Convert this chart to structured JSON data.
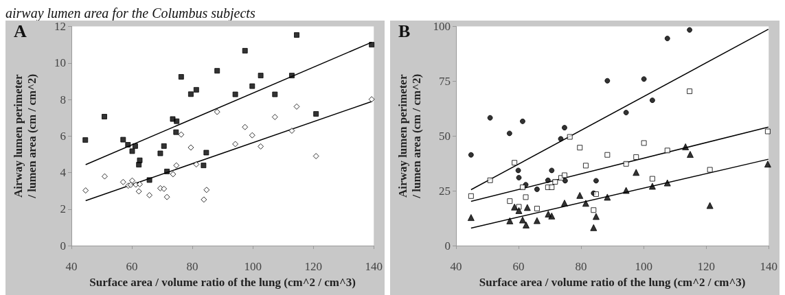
{
  "chart_data": [
    {
      "type": "scatter",
      "title": "airway lumen area for the Columbus subjects",
      "annotations": [
        "A"
      ],
      "xlabel": "Surface area / volume ratio of the lung (cm^2 / cm^3)",
      "ylabel": "Airway lumen perimeter / lumen area (cm / cm^2)",
      "xlim": [
        40,
        140
      ],
      "xticks": [
        40,
        60,
        80,
        100,
        120,
        140
      ],
      "ylim": [
        0,
        12
      ],
      "yticks": [
        0,
        2,
        4,
        6,
        8,
        10,
        12
      ],
      "grid": false,
      "series": [
        {
          "marker": "square",
          "color": "#000000",
          "x": [
            44.6,
            50.9,
            57.1,
            58.7,
            60.1,
            61.1,
            62.3,
            62.6,
            65.8,
            69.4,
            70.6,
            71.6,
            73.5,
            74.8,
            74.6,
            76.3,
            79.5,
            81.3,
            88.2,
            97.4,
            94.2,
            102.6,
            99.8,
            112.9,
            114.5,
            107.3,
            120.9,
            139.3,
            84.6,
            83.7
          ],
          "values": [
            5.78,
            7.06,
            5.8,
            5.52,
            5.17,
            5.45,
            4.43,
            4.67,
            3.59,
            5.05,
            5.45,
            4.06,
            6.93,
            6.81,
            6.21,
            9.24,
            8.29,
            8.53,
            9.57,
            10.67,
            8.28,
            9.31,
            8.73,
            9.31,
            11.53,
            8.28,
            7.21,
            11.0,
            5.09,
            4.39
          ]
        },
        {
          "marker": "diamond",
          "color": "#ffffff",
          "x": [
            44.7,
            51.0,
            57.1,
            58.8,
            60.1,
            59.6,
            61.3,
            62.6,
            62.3,
            65.8,
            69.4,
            70.6,
            71.6,
            73.6,
            74.7,
            76.3,
            79.5,
            81.3,
            88.2,
            94.2,
            97.4,
            99.8,
            102.6,
            107.3,
            112.9,
            114.5,
            120.9,
            139.3,
            84.7,
            83.8
          ],
          "values": [
            3.02,
            3.79,
            3.48,
            3.28,
            3.56,
            3.32,
            3.34,
            3.36,
            2.97,
            2.76,
            3.14,
            3.11,
            2.66,
            3.91,
            4.39,
            6.08,
            5.37,
            4.45,
            7.32,
            5.56,
            6.49,
            6.04,
            5.43,
            7.04,
            6.29,
            7.61,
            4.9,
            8.01,
            3.05,
            2.52
          ]
        },
        {
          "type": "line",
          "marker": "none",
          "color": "#000000",
          "x": [
            44.7,
            139.3
          ],
          "values": [
            4.43,
            11.13
          ]
        },
        {
          "type": "line",
          "marker": "none",
          "color": "#000000",
          "x": [
            44.7,
            139.3
          ],
          "values": [
            2.46,
            7.89
          ]
        }
      ]
    },
    {
      "type": "scatter",
      "annotations": [
        "B"
      ],
      "xlabel": "Surface area / volume ratio of the lung (cm^2 / cm^3)",
      "ylabel": "Airway lumen perimeter / lumen area (cm / cm^2)",
      "xlim": [
        40,
        140
      ],
      "xticks": [
        40,
        60,
        80,
        100,
        120,
        140
      ],
      "ylim": [
        0,
        100
      ],
      "yticks": [
        0,
        25,
        50,
        75,
        100
      ],
      "grid": false,
      "series": [
        {
          "marker": "circle",
          "color": "#000000",
          "x": [
            44.8,
            50.9,
            57.1,
            61.3,
            59.9,
            60.1,
            62.3,
            65.9,
            69.4,
            70.6,
            73.5,
            74.7,
            74.9,
            88.4,
            94.4,
            100.1,
            102.8,
            107.6,
            114.7,
            84.8,
            84.0
          ],
          "values": [
            41.4,
            58.3,
            51.2,
            56.7,
            34.3,
            31.0,
            27.8,
            25.7,
            29.8,
            34.3,
            48.7,
            53.8,
            29.6,
            75.2,
            60.7,
            76.0,
            66.3,
            94.5,
            98.4,
            29.6,
            23.9
          ]
        },
        {
          "marker": "square",
          "color": "#ffffff",
          "x": [
            44.8,
            50.9,
            57.2,
            58.7,
            60.1,
            61.3,
            62.3,
            65.9,
            69.4,
            70.6,
            71.7,
            73.6,
            74.7,
            76.4,
            79.6,
            81.5,
            88.4,
            94.4,
            97.6,
            100.1,
            102.8,
            107.6,
            114.7,
            121.2,
            139.7,
            84.8,
            84.0
          ],
          "values": [
            22.6,
            29.8,
            20.3,
            37.8,
            17.7,
            26.6,
            22.1,
            16.9,
            26.6,
            26.6,
            29.1,
            30.9,
            32.1,
            49.6,
            44.7,
            36.5,
            41.4,
            37.3,
            40.4,
            46.8,
            30.5,
            43.4,
            70.4,
            34.6,
            52.1,
            23.5,
            16.2
          ]
        },
        {
          "marker": "triangle",
          "color": "#000000",
          "x": [
            44.8,
            57.2,
            58.7,
            60.1,
            61.3,
            62.4,
            62.8,
            65.9,
            69.5,
            70.6,
            74.7,
            79.6,
            81.5,
            88.4,
            94.4,
            97.6,
            102.8,
            107.6,
            113.4,
            114.9,
            121.2,
            139.7,
            84.8,
            84.0
          ],
          "values": [
            12.8,
            11.3,
            17.6,
            16.0,
            11.7,
            9.4,
            17.4,
            11.4,
            14.4,
            13.5,
            19.4,
            22.9,
            19.3,
            22.1,
            25.2,
            33.4,
            27.1,
            28.6,
            45.1,
            41.6,
            18.3,
            37.2,
            13.3,
            8.2
          ]
        },
        {
          "type": "line",
          "marker": "none",
          "color": "#000000",
          "x": [
            44.8,
            139.9
          ],
          "values": [
            25.5,
            98.7
          ]
        },
        {
          "type": "line",
          "marker": "none",
          "color": "#000000",
          "x": [
            44.8,
            139.9
          ],
          "values": [
            20.2,
            54.1
          ]
        },
        {
          "type": "line",
          "marker": "none",
          "color": "#000000",
          "x": [
            44.8,
            139.9
          ],
          "values": [
            8.0,
            39.4
          ]
        }
      ]
    }
  ]
}
